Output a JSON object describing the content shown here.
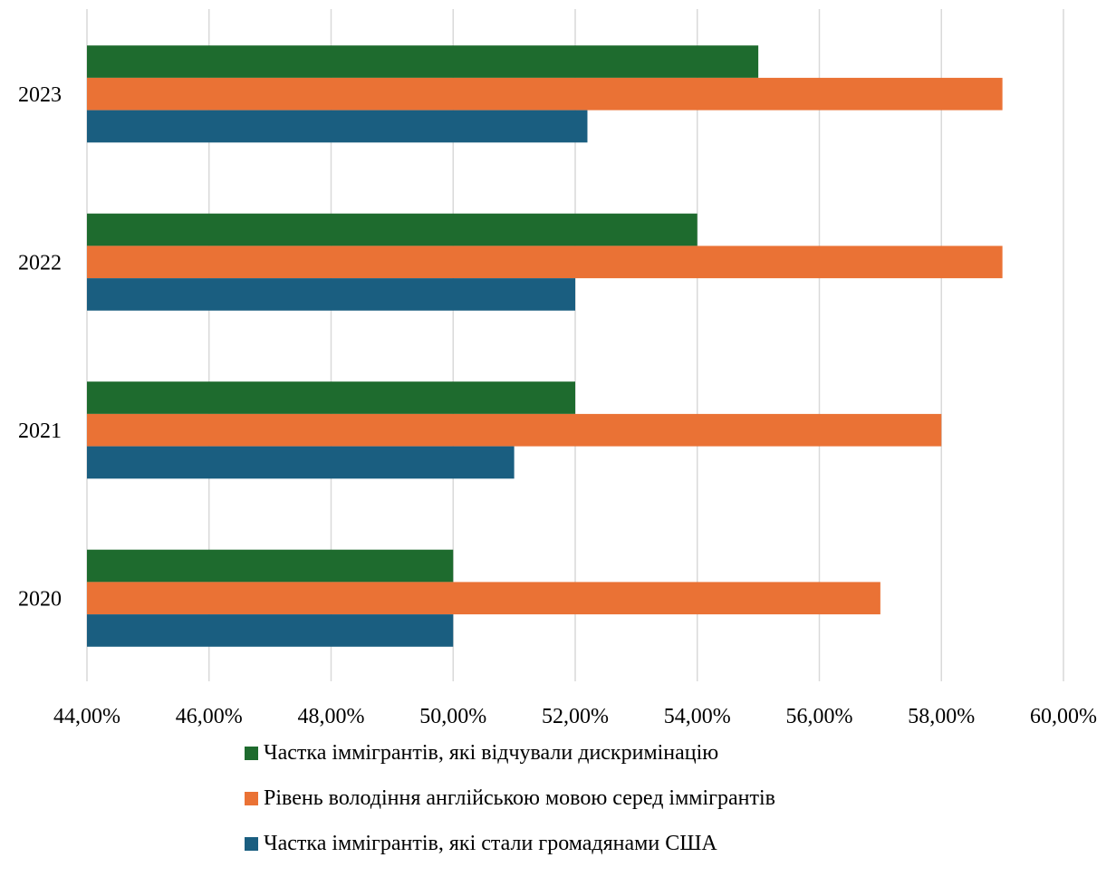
{
  "chart_data": {
    "type": "bar",
    "orientation": "horizontal",
    "categories": [
      "2020",
      "2021",
      "2022",
      "2023"
    ],
    "series": [
      {
        "name": "Частка іммігрантів, які відчували дискримінацію",
        "color": "#1E6B2E",
        "values": [
          50,
          52,
          54,
          55
        ]
      },
      {
        "name": "Рівень володіння англійською мовою серед іммігрантів",
        "color": "#EA7235",
        "values": [
          57,
          58,
          59,
          59
        ]
      },
      {
        "name": "Частка іммігрантів, які стали громадянами США",
        "color": "#1A5E80",
        "values": [
          50,
          51,
          52,
          52.2
        ]
      }
    ],
    "xlim": [
      44,
      60
    ],
    "x_ticks": [
      "44,00%",
      "46,00%",
      "48,00%",
      "50,00%",
      "52,00%",
      "54,00%",
      "56,00%",
      "58,00%",
      "60,00%"
    ],
    "grid": "vertical",
    "legend_position": "bottom"
  }
}
